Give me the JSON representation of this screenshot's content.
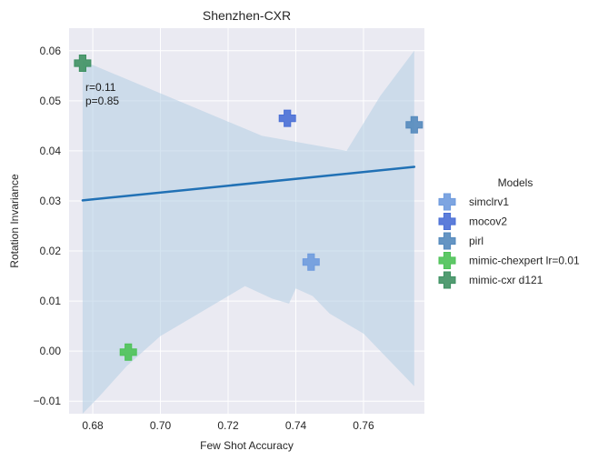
{
  "chart_data": {
    "type": "scatter",
    "title": "Shenzhen-CXR",
    "xlabel": "Few Shot Accuracy",
    "ylabel": "Rotation Invariance",
    "xlim": [
      0.673,
      0.778
    ],
    "ylim": [
      -0.0125,
      0.0645
    ],
    "xticks": [
      "0.68",
      "0.70",
      "0.72",
      "0.74",
      "0.76"
    ],
    "yticks": [
      "−0.01",
      "0.00",
      "0.01",
      "0.02",
      "0.03",
      "0.04",
      "0.05",
      "0.06"
    ],
    "grid": true,
    "legend": {
      "title": "Models",
      "position": "right"
    },
    "series": [
      {
        "name": "simclrv1",
        "color": "#6f9bde",
        "points": [
          [
            0.7445,
            0.0178
          ]
        ]
      },
      {
        "name": "mocov2",
        "color": "#4a6fd6",
        "points": [
          [
            0.7375,
            0.0465
          ]
        ]
      },
      {
        "name": "pirl",
        "color": "#5489bd",
        "points": [
          [
            0.775,
            0.0452
          ]
        ]
      },
      {
        "name": "mimic-chexpert lr=0.01",
        "color": "#4dc257",
        "points": [
          [
            0.6905,
            -0.0002
          ]
        ]
      },
      {
        "name": "mimic-cxr d121",
        "color": "#3f9163",
        "points": [
          [
            0.677,
            0.0575
          ]
        ]
      }
    ],
    "regression": {
      "color": "#2171b5",
      "band_color": "#b3cde3",
      "x_range": [
        0.677,
        0.775
      ],
      "y_range": [
        0.0301,
        0.0368
      ],
      "band_upper": [
        [
          0.677,
          0.058
        ],
        [
          0.73,
          0.043
        ],
        [
          0.755,
          0.04
        ],
        [
          0.765,
          0.051
        ],
        [
          0.775,
          0.06
        ]
      ],
      "band_lower": [
        [
          0.677,
          -0.0125
        ],
        [
          0.682,
          -0.009
        ],
        [
          0.69,
          -0.003
        ],
        [
          0.7,
          0.003
        ],
        [
          0.71,
          0.007
        ],
        [
          0.72,
          0.011
        ],
        [
          0.725,
          0.013
        ],
        [
          0.733,
          0.0105
        ],
        [
          0.738,
          0.0095
        ],
        [
          0.74,
          0.0125
        ],
        [
          0.745,
          0.011
        ],
        [
          0.75,
          0.0075
        ],
        [
          0.76,
          0.0035
        ],
        [
          0.775,
          -0.007
        ]
      ]
    },
    "annotations": [
      "r=0.11",
      "p=0.85"
    ]
  }
}
